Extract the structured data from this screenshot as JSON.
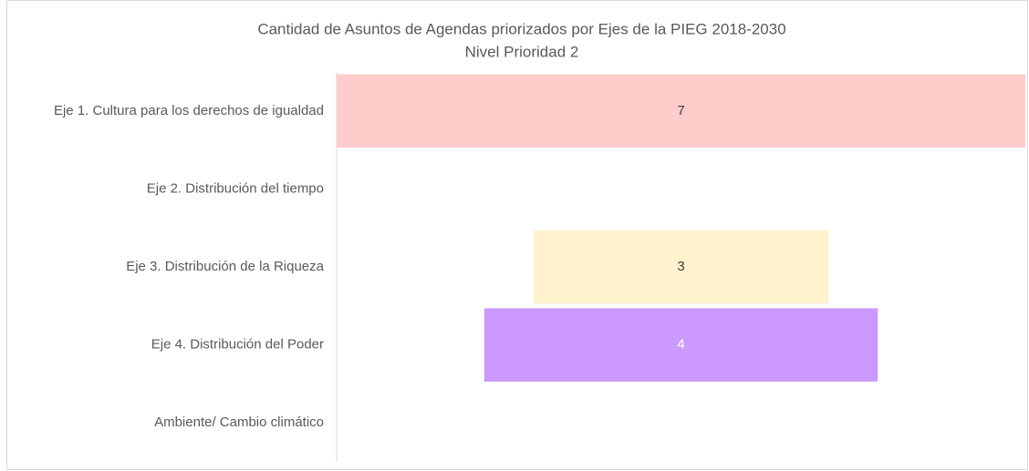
{
  "chart_data": {
    "type": "funnel",
    "title": "Cantidad de Asuntos de Agendas priorizados por Ejes de la PIEG 2018-2030",
    "subtitle": "Nivel Prioridad 2",
    "categories": [
      "Eje 1. Cultura para los derechos de igualdad",
      "Eje 2. Distribución del tiempo",
      "Eje 3. Distribución de la Riqueza",
      "Eje 4. Distribución del Poder",
      "Ambiente/ Cambio climático"
    ],
    "values": [
      7,
      null,
      3,
      4,
      null
    ],
    "colors": [
      "#ffcccc",
      null,
      "#fff2cc",
      "#cc99ff",
      null
    ],
    "label_colors": [
      "#404040",
      null,
      "#404040",
      "#ffffff",
      null
    ]
  }
}
